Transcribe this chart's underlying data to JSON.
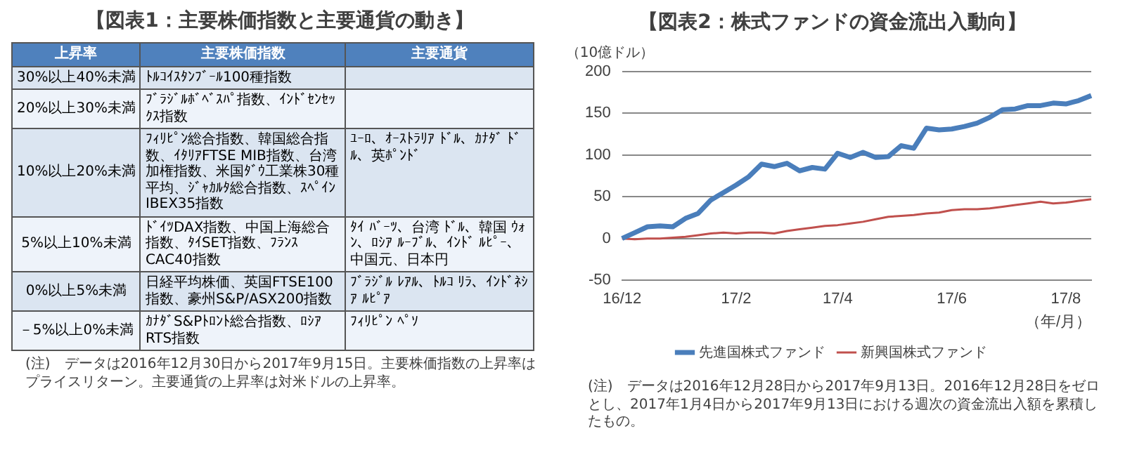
{
  "chart_data": [
    {
      "type": "other",
      "title": "【図表1：主要株価指数と主要通貨の動き】",
      "categories": [
        "上昇率",
        "主要株価指数",
        "主要通貨"
      ],
      "y_categories": [
        "30%以上40%未満",
        "20%以上30%未満",
        "10%以上20%未満",
        "5%以上10%未満",
        "0%以上5%未満",
        "－5%以上0%未満"
      ],
      "cell_labels": [
        [
          "ﾄﾙｺｲｽﾀﾝﾌﾞｰﾙ100種指数",
          null
        ],
        [
          "ﾌﾞﾗｼﾞﾙﾎﾞﾍﾞｽﾊﾟ指数、ｲﾝﾄﾞｾﾝｾｯｸｽ指数",
          null
        ],
        [
          "ﾌｨﾘﾋﾟﾝ総合指数、韓国総合指数、ｲﾀﾘｱFTSE MIB指数、台湾加権指数、米国ﾀﾞｳ工業株30種平均、ｼﾞｬｶﾙﾀ総合指数、ｽﾍﾟｲﾝIBEX35指数",
          "ﾕｰﾛ、ｵｰｽﾄﾗﾘｱ ﾄﾞﾙ、ｶﾅﾀﾞ ﾄﾞﾙ、英ﾎﾟﾝﾄﾞ"
        ],
        [
          "ﾄﾞｲﾂDAX指数、中国上海総合指数、ﾀｲSET指数、ﾌﾗﾝｽCAC40指数",
          "ﾀｲ ﾊﾞｰﾂ、台湾 ﾄﾞﾙ、韓国 ｳｫﾝ、ﾛｼｱ ﾙｰﾌﾞﾙ、ｲﾝﾄﾞ ﾙﾋﾟｰ、中国元、日本円"
        ],
        [
          "日経平均株価、英国FTSE100指数、豪州S&P/ASX200指数",
          "ﾌﾞﾗｼﾞﾙ ﾚｱﾙ、ﾄﾙｺ ﾘﾗ、ｲﾝﾄﾞﾈｼｱ ﾙﾋﾟｱ"
        ],
        [
          "ｶﾅﾀﾞS&Pﾄﾛﾝﾄ総合指数、ﾛｼｱRTS指数",
          "ﾌｨﾘﾋﾟﾝ ﾍﾟｿ"
        ]
      ],
      "annotations": [
        "(注)　データは2016年12月30日から2017年9月15日。主要株価指数の上昇率はプライスリターン。主要通貨の上昇率は対米ドルの上昇率。"
      ]
    },
    {
      "type": "line",
      "title": "【図表2：株式ファンドの資金流出入動向】",
      "ylabel": "（10億ドル）",
      "xlabel": "（年/月）",
      "categories": [
        "16/12",
        null,
        null,
        null,
        null,
        null,
        null,
        null,
        null,
        "17/2",
        null,
        null,
        null,
        null,
        null,
        null,
        null,
        "17/4",
        null,
        null,
        null,
        null,
        null,
        null,
        null,
        null,
        "17/6",
        null,
        null,
        null,
        null,
        null,
        null,
        null,
        null,
        "17/8",
        null,
        null
      ],
      "series": [
        {
          "name": "先進国株式ファンド",
          "color": "#4a7ebb",
          "values": [
            0,
            7,
            14,
            15,
            14,
            24,
            30,
            46,
            55,
            64,
            74,
            89,
            86,
            90,
            81,
            85,
            83,
            102,
            97,
            103,
            97,
            98,
            111,
            108,
            132,
            130,
            131,
            134,
            138,
            145,
            154,
            155,
            159,
            159,
            162,
            161,
            165,
            171
          ]
        },
        {
          "name": "新興国株式ファンド",
          "color": "#c0504d",
          "values": [
            0,
            -1,
            0,
            0,
            1,
            2,
            4,
            6,
            7,
            6,
            7,
            7,
            6,
            9,
            11,
            13,
            15,
            16,
            18,
            20,
            23,
            26,
            27,
            28,
            30,
            31,
            34,
            35,
            35,
            36,
            38,
            40,
            42,
            44,
            42,
            43,
            45,
            47
          ]
        }
      ],
      "ylim": [
        -50,
        200
      ],
      "yticks": [
        -50,
        0,
        50,
        100,
        150,
        200
      ],
      "grid": "y",
      "legend": "bottom",
      "marker": "none",
      "annotations": [
        "(注)　データは2016年12月28日から2017年9月13日。2016年12月28日をゼロとし、2017年1月4日から2017年9月13日における週次の資金流出入額を累積したもの。"
      ]
    }
  ]
}
